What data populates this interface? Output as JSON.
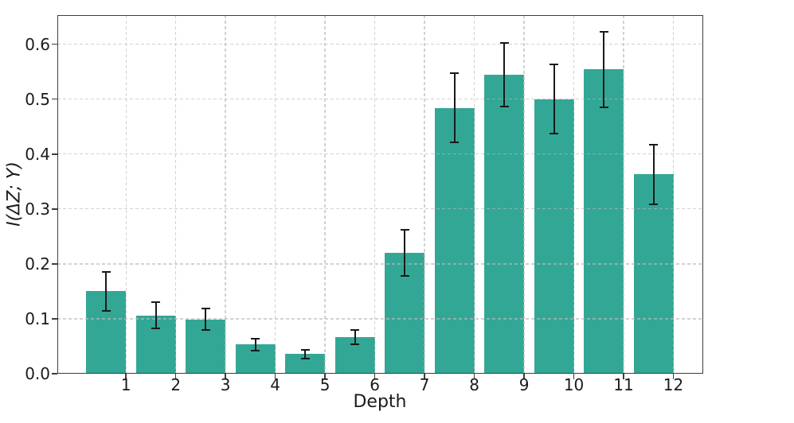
{
  "figure": {
    "background": "#ffffff"
  },
  "chart_data": {
    "type": "bar",
    "title": "",
    "xlabel": "Depth",
    "ylabel": "I(ΔZ; Y)",
    "categories": [
      "1",
      "2",
      "3",
      "4",
      "5",
      "6",
      "7",
      "8",
      "9",
      "10",
      "11",
      "12"
    ],
    "x_positions": [
      1,
      2,
      3,
      4,
      5,
      6,
      7,
      8,
      9,
      10,
      11,
      12
    ],
    "values": [
      0.15,
      0.106,
      0.099,
      0.053,
      0.036,
      0.066,
      0.22,
      0.484,
      0.545,
      0.5,
      0.554,
      0.363
    ],
    "errors": [
      0.035,
      0.024,
      0.02,
      0.011,
      0.008,
      0.013,
      0.042,
      0.063,
      0.058,
      0.063,
      0.069,
      0.054
    ],
    "ylim": [
      0,
      0.653
    ],
    "xlim": [
      -0.38,
      12.6
    ],
    "yticks": [
      "0.0",
      "0.1",
      "0.2",
      "0.3",
      "0.4",
      "0.5",
      "0.6"
    ],
    "ytick_values": [
      0.0,
      0.1,
      0.2,
      0.3,
      0.4,
      0.5,
      0.6
    ],
    "bar_width_units": 0.8,
    "bar_center_offset": -0.4,
    "grid": {
      "visible": true,
      "style": "dashed",
      "axes": "both",
      "over_bars": true
    },
    "legend": {
      "visible": false
    },
    "colors": {
      "bar": "#33a795",
      "error_bar": "#1a1a1a",
      "grid": "#c9c9c9",
      "frame": "#3d3d3d",
      "text": "#1b1b1b",
      "background": "#ffffff"
    }
  }
}
